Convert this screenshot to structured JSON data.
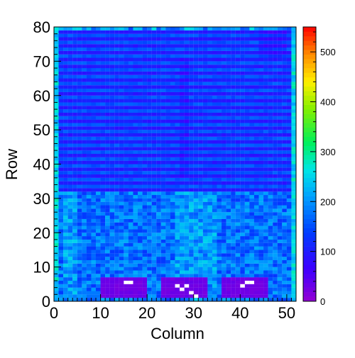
{
  "chart_data": {
    "type": "heatmap",
    "title": "",
    "xlabel": "Column",
    "ylabel": "Row",
    "xlim": [
      0,
      52
    ],
    "ylim": [
      0,
      80
    ],
    "x_ticks": [
      "0",
      "10",
      "20",
      "30",
      "40",
      "50"
    ],
    "y_ticks": [
      "0",
      "10",
      "20",
      "30",
      "40",
      "50",
      "60",
      "70",
      "80"
    ],
    "z_range": [
      0,
      550
    ],
    "z_ticks": [
      "0",
      "100",
      "200",
      "300",
      "400",
      "500"
    ],
    "colormap": "rainbow: violet(low) - blue - cyan - green - yellow - red(high)",
    "description_of_cells": "52 x 80 bins: rows 0-31 mostly cyan-green (~150-260), rows 32-80 alternating bands of blue (~80-110) and light blue (~140-170); low-count violet/white blocks near rows 1-6 at columns 10-19, 23-32, 36-45; border columns 0 and 51 show higher counts (~250-300)",
    "bands": [
      {
        "rows": [
          0,
          31
        ],
        "typical_value": 180
      },
      {
        "rows": [
          32,
          80
        ],
        "even_rows_value": 95,
        "odd_rows_value": 155
      }
    ],
    "low_blocks": [
      {
        "columns": [
          10,
          19
        ],
        "rows": [
          1,
          6
        ],
        "value": 20
      },
      {
        "columns": [
          23,
          32
        ],
        "rows": [
          1,
          6
        ],
        "value": 20
      },
      {
        "columns": [
          36,
          45
        ],
        "rows": [
          1,
          6
        ],
        "value": 20
      }
    ],
    "grid": false,
    "legend": "color bar on right"
  }
}
